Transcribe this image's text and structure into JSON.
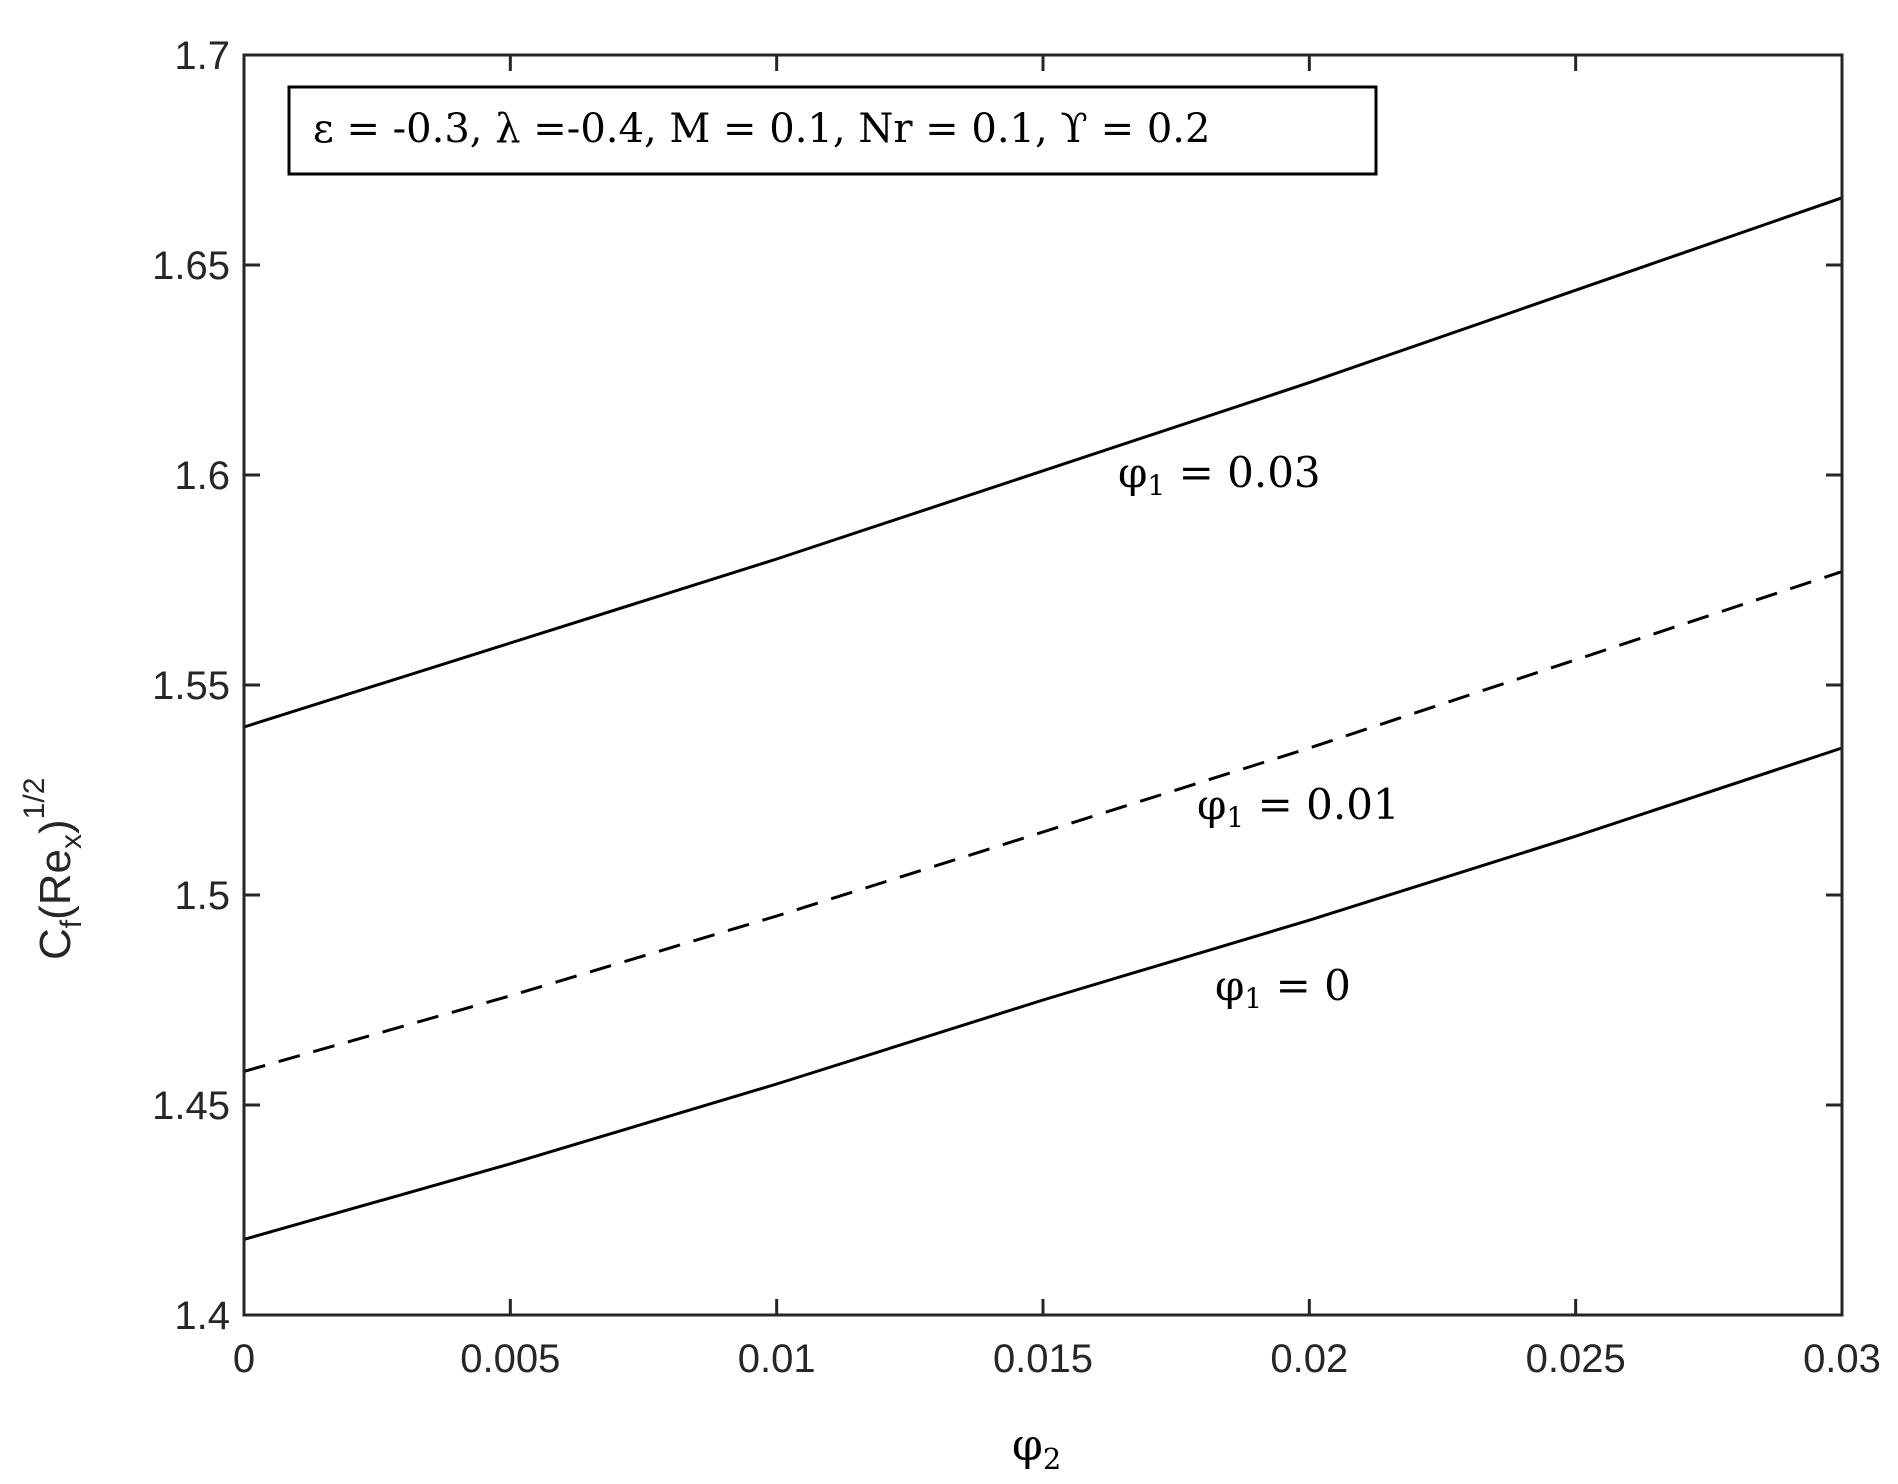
{
  "chart_data": {
    "type": "line",
    "xlabel": {
      "base": "φ",
      "sub": "2"
    },
    "ylabel": {
      "base": "C",
      "sub1": "f",
      "mid": "(Re",
      "sub2": "x",
      "close": ")",
      "sup": "1/2"
    },
    "xlim": [
      0,
      0.03
    ],
    "ylim": [
      1.4,
      1.7
    ],
    "x_ticks": [
      0,
      0.005,
      0.01,
      0.015,
      0.02,
      0.025,
      0.03
    ],
    "x_tick_labels": [
      "0",
      "0.005",
      "0.01",
      "0.015",
      "0.02",
      "0.025",
      "0.03"
    ],
    "y_ticks": [
      1.4,
      1.45,
      1.5,
      1.55,
      1.6,
      1.65,
      1.7
    ],
    "y_tick_labels": [
      "1.4",
      "1.45",
      "1.5",
      "1.55",
      "1.6",
      "1.65",
      "1.7"
    ],
    "grid": false,
    "annotation_box": "ε = -0.3, λ =-0.4, M = 0.1, Nr = 0.1, ϒ = 0.2",
    "x": [
      0,
      0.005,
      0.01,
      0.015,
      0.02,
      0.025,
      0.03
    ],
    "series": [
      {
        "label": {
          "base": "φ",
          "sub": "1",
          "rest": " = 0.03"
        },
        "style": "solid",
        "color": "#000000",
        "values": [
          1.54,
          1.56,
          1.58,
          1.601,
          1.622,
          1.644,
          1.666
        ]
      },
      {
        "label": {
          "base": "φ",
          "sub": "1",
          "rest": " = 0.01"
        },
        "style": "dashed",
        "color": "#000000",
        "values": [
          1.458,
          1.476,
          1.495,
          1.515,
          1.535,
          1.556,
          1.577
        ]
      },
      {
        "label": {
          "base": "φ",
          "sub": "1",
          "rest": " = 0"
        },
        "style": "solid",
        "color": "#000000",
        "values": [
          1.418,
          1.436,
          1.455,
          1.475,
          1.494,
          1.514,
          1.535
        ]
      }
    ]
  }
}
